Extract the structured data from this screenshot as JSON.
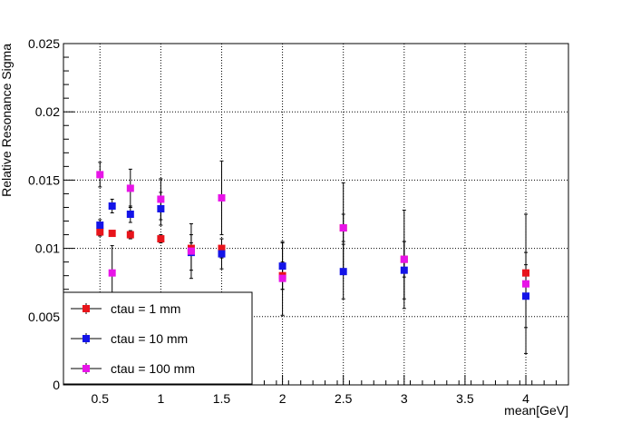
{
  "chart_data": {
    "type": "scatter",
    "title": "",
    "xlabel": "mean[GeV]",
    "ylabel": "Relative Resonance Sigma",
    "xlim": [
      0.2,
      4.35
    ],
    "ylim": [
      0,
      0.025
    ],
    "grid": true,
    "legend_position": "bottom-left",
    "x_tick_labels": [
      "0.5",
      "1",
      "1.5",
      "2",
      "2.5",
      "3",
      "3.5",
      "4"
    ],
    "y_tick_labels": [
      "0",
      "0.005",
      "0.01",
      "0.015",
      "0.02",
      "0.025"
    ],
    "series": [
      {
        "name": "ctau = 1 mm",
        "color": "#e8141b",
        "points": [
          {
            "x": 0.5,
            "y": 0.0112,
            "err": 0.0003
          },
          {
            "x": 0.6,
            "y": 0.0111,
            "err": 0.0002
          },
          {
            "x": 0.75,
            "y": 0.011,
            "err": 0.0003
          },
          {
            "x": 1.0,
            "y": 0.0107,
            "err": 0.0003
          },
          {
            "x": 1.25,
            "y": 0.01,
            "err": 0.0004
          },
          {
            "x": 1.5,
            "y": 0.01,
            "err": 0.0007
          },
          {
            "x": 2.0,
            "y": 0.008,
            "err": 0.001
          },
          {
            "x": 2.5,
            "y": 0.0115,
            "err": 0.001
          },
          {
            "x": 3.0,
            "y": 0.0092,
            "err": 0.0013
          },
          {
            "x": 4.0,
            "y": 0.0082,
            "err": 0.0015
          }
        ]
      },
      {
        "name": "ctau = 10 mm",
        "color": "#1414e8",
        "points": [
          {
            "x": 0.5,
            "y": 0.0117,
            "err": 0.0004
          },
          {
            "x": 0.6,
            "y": 0.0131,
            "err": 0.0005
          },
          {
            "x": 0.75,
            "y": 0.0125,
            "err": 0.0006
          },
          {
            "x": 1.0,
            "y": 0.0129,
            "err": 0.0012
          },
          {
            "x": 1.25,
            "y": 0.0097,
            "err": 0.0013
          },
          {
            "x": 1.5,
            "y": 0.0096,
            "err": 0.0011
          },
          {
            "x": 2.0,
            "y": 0.0087,
            "err": 0.0017
          },
          {
            "x": 2.5,
            "y": 0.0083,
            "err": 0.002
          },
          {
            "x": 3.0,
            "y": 0.0084,
            "err": 0.0021
          },
          {
            "x": 4.0,
            "y": 0.0065,
            "err": 0.0023
          }
        ]
      },
      {
        "name": "ctau = 100 mm",
        "color": "#e814e8",
        "points": [
          {
            "x": 0.5,
            "y": 0.0154,
            "err": 0.0009
          },
          {
            "x": 0.6,
            "y": 0.0082,
            "err": 0.002
          },
          {
            "x": 0.75,
            "y": 0.0144,
            "err": 0.0014
          },
          {
            "x": 1.0,
            "y": 0.0136,
            "err": 0.0015
          },
          {
            "x": 1.25,
            "y": 0.0098,
            "err": 0.002
          },
          {
            "x": 1.5,
            "y": 0.0137,
            "err": 0.0027
          },
          {
            "x": 2.0,
            "y": 0.0078,
            "err": 0.0027
          },
          {
            "x": 2.5,
            "y": 0.0115,
            "err": 0.0033
          },
          {
            "x": 3.0,
            "y": 0.0092,
            "err": 0.0036
          },
          {
            "x": 4.0,
            "y": 0.0074,
            "err": 0.0051
          }
        ]
      }
    ]
  }
}
